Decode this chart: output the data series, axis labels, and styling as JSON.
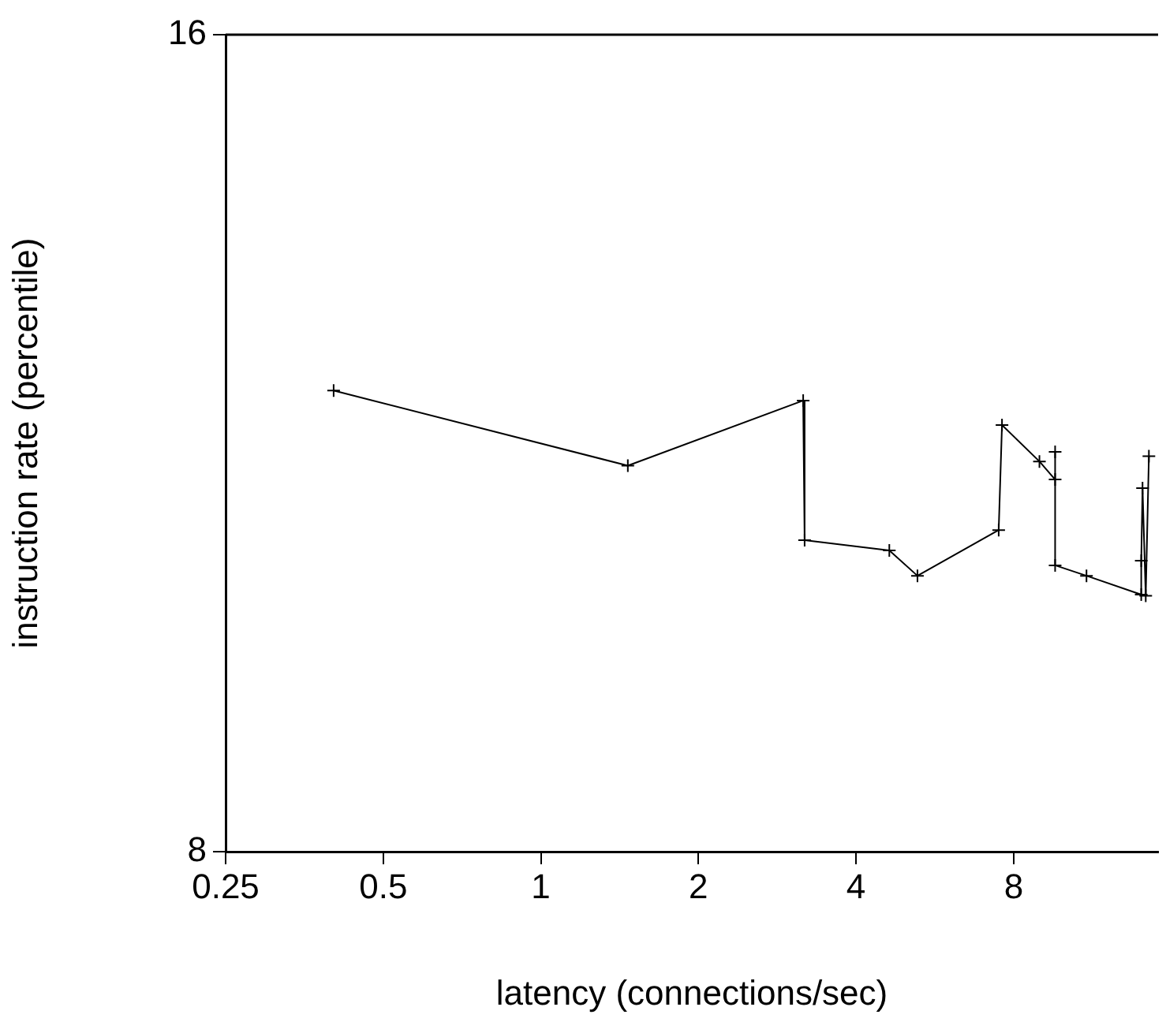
{
  "chart_data": {
    "type": "line",
    "xlabel": "latency (connections/sec)",
    "ylabel": "instruction rate (percentile)",
    "log": "xy",
    "xlim": [
      0.25,
      15.1
    ],
    "xticks": [
      0.25,
      0.5,
      1,
      2,
      4,
      8
    ],
    "ylim": [
      8,
      16
    ],
    "yticks": [
      8,
      16
    ],
    "grid": false,
    "legend": false,
    "marker": "cross",
    "line_style": "solid",
    "series": [
      {
        "color": "#000000",
        "x": [
          0.402,
          1.466,
          3.17,
          3.19,
          4.63,
          5.24,
          7.49,
          7.6,
          8.96,
          9.6,
          9.6,
          9.6,
          11.02,
          14.02,
          14.02,
          14.1,
          14.3,
          14.5
        ],
        "values": [
          11.83,
          11.1,
          11.73,
          10.42,
          10.33,
          10.11,
          10.51,
          11.49,
          11.14,
          10.97,
          11.23,
          10.2,
          10.11,
          9.95,
          10.24,
          10.89,
          9.94,
          11.19
        ]
      }
    ]
  }
}
